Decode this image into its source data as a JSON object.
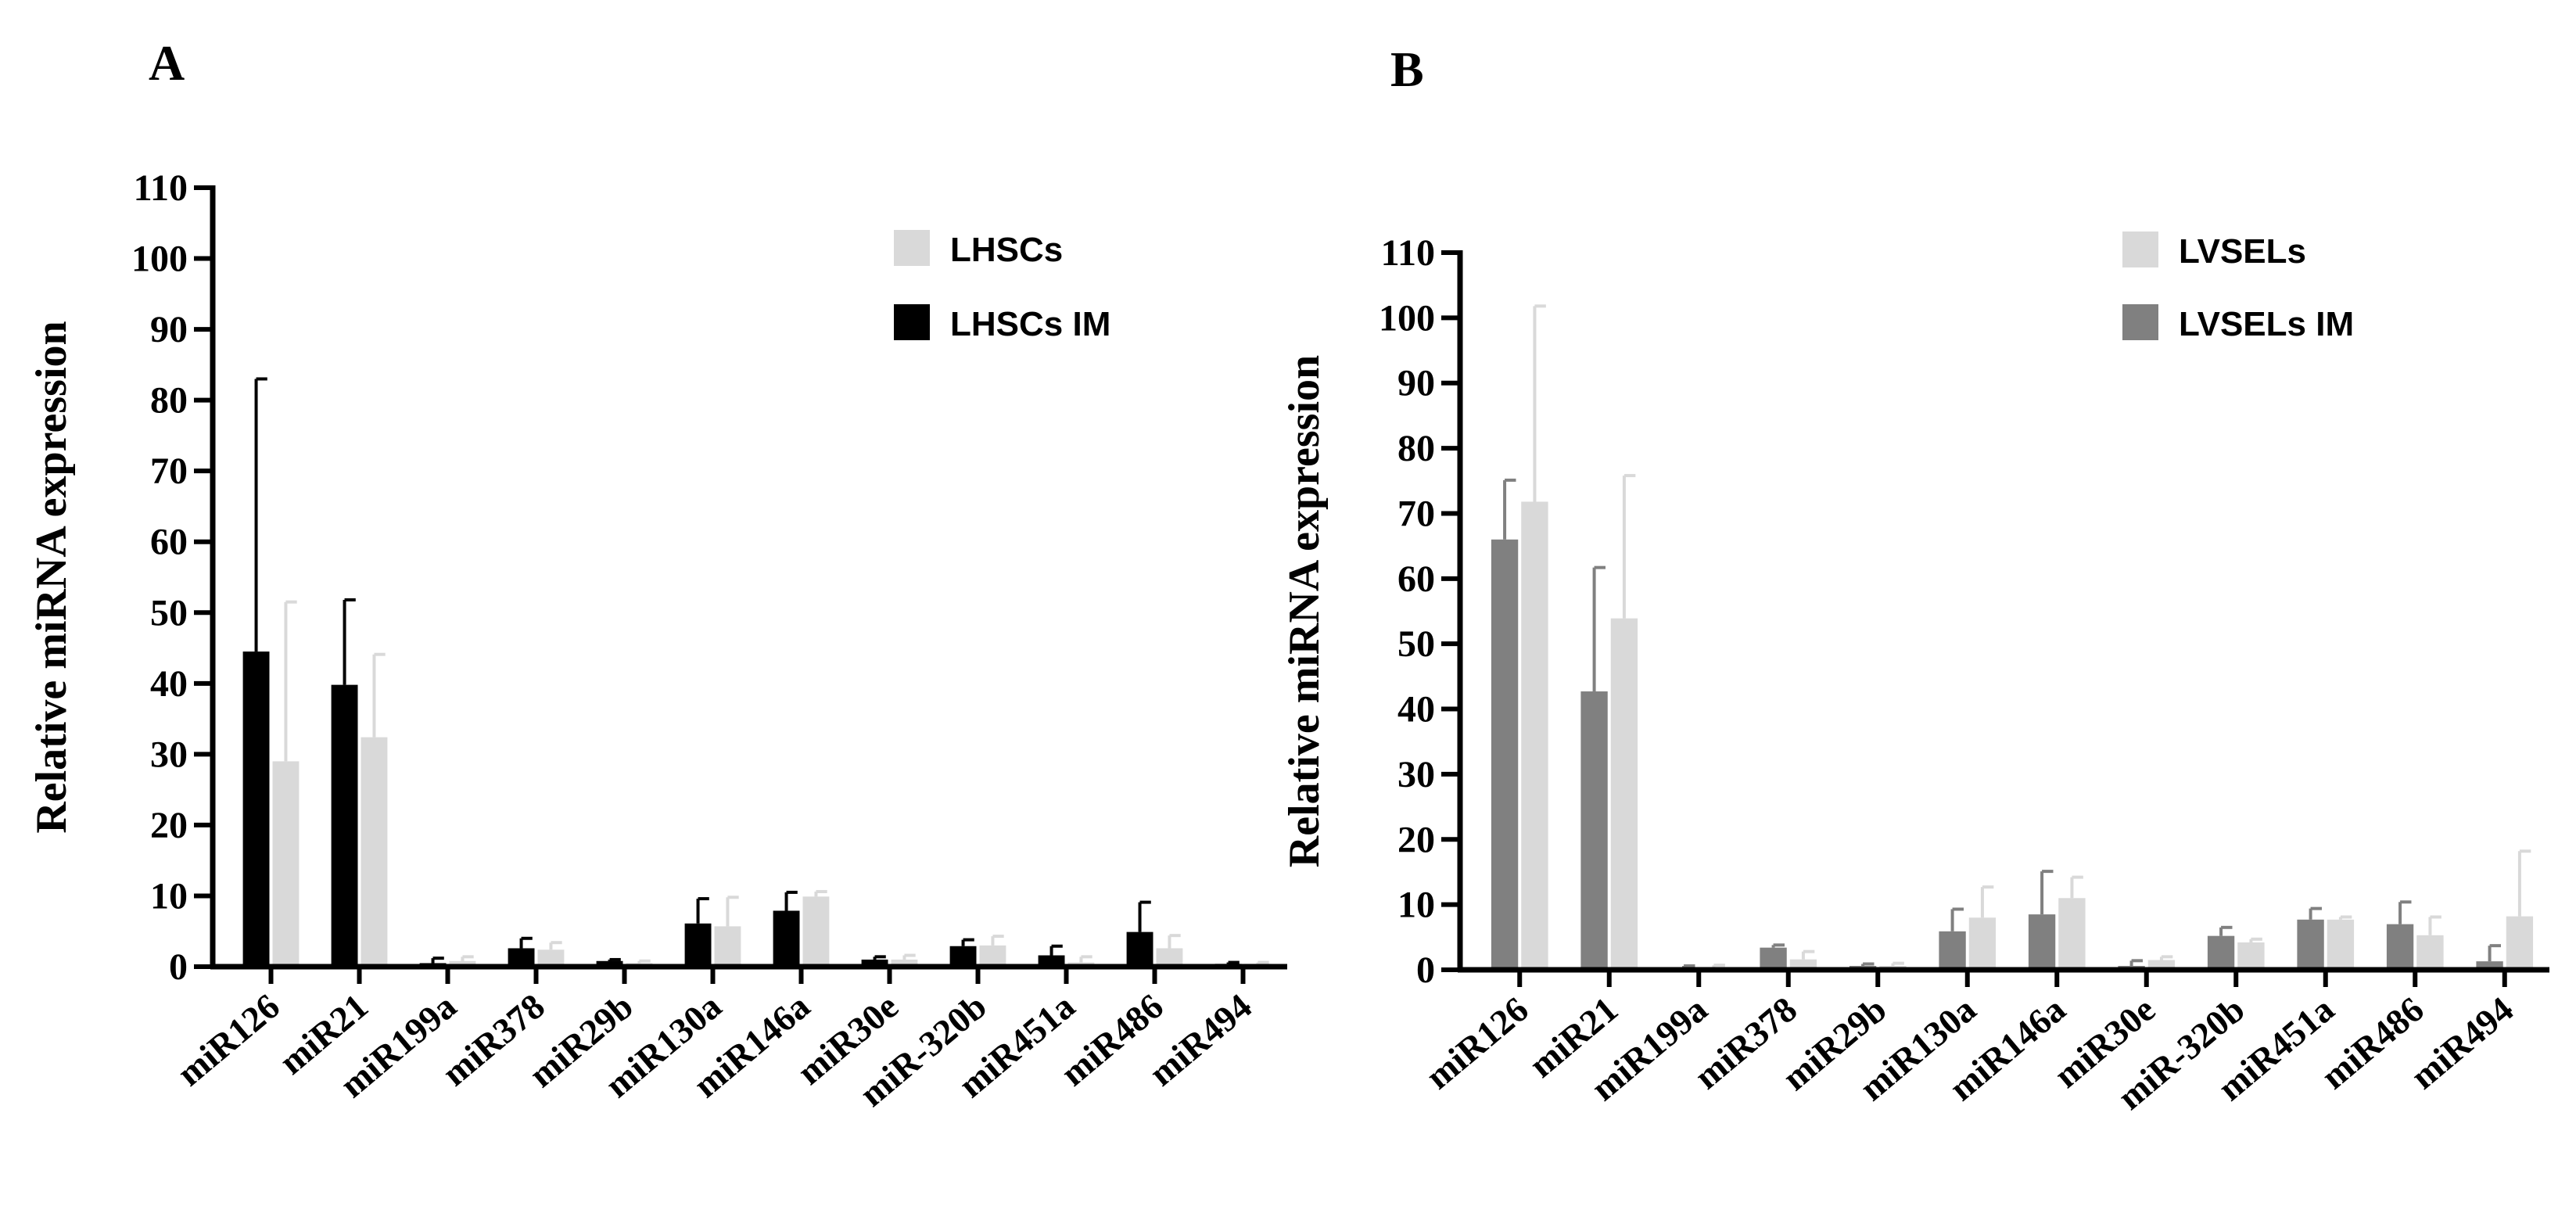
{
  "chart_data": [
    {
      "type": "bar",
      "panel": "A",
      "ylabel": "Relative miRNA expression",
      "xlabel": "",
      "ylim": [
        0,
        110
      ],
      "yticks": [
        0,
        10,
        20,
        30,
        40,
        50,
        60,
        70,
        80,
        90,
        100,
        110
      ],
      "categories": [
        "miR126",
        "miR21",
        "miR199a",
        "miR378",
        "miR29b",
        "miR130a",
        "miR146a",
        "miR30e",
        "miR-320b",
        "miR451a",
        "miR486",
        "miR494"
      ],
      "legend_position": "top-right",
      "series": [
        {
          "name": "LHSCs IM",
          "color": "#000000",
          "values": [
            44.5,
            39.8,
            0.5,
            2.6,
            0.8,
            6.1,
            7.9,
            1.0,
            2.9,
            1.6,
            4.9,
            0.4
          ],
          "errors": [
            38.5,
            12.0,
            0.7,
            1.4,
            0.2,
            3.5,
            2.6,
            0.4,
            0.9,
            1.3,
            4.2,
            0.2
          ]
        },
        {
          "name": "LHSCs",
          "color": "#d9d9d9",
          "values": [
            29.0,
            32.4,
            0.8,
            2.4,
            0.5,
            5.7,
            9.9,
            1.0,
            3.0,
            0.6,
            2.6,
            0.4
          ],
          "errors": [
            22.5,
            11.7,
            0.6,
            1.0,
            0.3,
            4.1,
            0.7,
            0.6,
            1.3,
            0.8,
            1.8,
            0.2
          ]
        }
      ],
      "legend": [
        {
          "name": "LHSCs",
          "color": "#d9d9d9"
        },
        {
          "name": "LHSCs IM",
          "color": "#000000"
        }
      ]
    },
    {
      "type": "bar",
      "panel": "B",
      "ylabel": "Relative miRNA expression",
      "xlabel": "",
      "ylim": [
        0,
        110
      ],
      "yticks": [
        0,
        10,
        20,
        30,
        40,
        50,
        60,
        70,
        80,
        90,
        100,
        110
      ],
      "categories": [
        "miR126",
        "miR21",
        "miR199a",
        "miR378",
        "miR29b",
        "miR130a",
        "miR146a",
        "miR30e",
        "miR-320b",
        "miR451a",
        "miR486",
        "miR494"
      ],
      "legend_position": "top-right",
      "series": [
        {
          "name": "LVSELs IM",
          "color": "#808080",
          "values": [
            66.0,
            42.7,
            0.3,
            3.4,
            0.6,
            5.9,
            8.5,
            0.6,
            5.2,
            7.7,
            7.0,
            1.3
          ],
          "errors": [
            9.1,
            19.0,
            0.3,
            0.4,
            0.3,
            3.4,
            6.6,
            0.8,
            1.3,
            1.7,
            3.4,
            2.4
          ]
        },
        {
          "name": "LVSELs",
          "color": "#d9d9d9",
          "values": [
            71.8,
            53.9,
            0.4,
            1.6,
            0.6,
            8.0,
            11.0,
            1.5,
            4.2,
            7.7,
            5.3,
            8.2
          ],
          "errors": [
            30.0,
            21.9,
            0.3,
            1.2,
            0.4,
            4.7,
            3.2,
            0.5,
            0.5,
            0.4,
            2.8,
            10.0
          ]
        }
      ],
      "legend": [
        {
          "name": "LVSELs",
          "color": "#d9d9d9"
        },
        {
          "name": "LVSELs IM",
          "color": "#808080"
        }
      ]
    }
  ]
}
